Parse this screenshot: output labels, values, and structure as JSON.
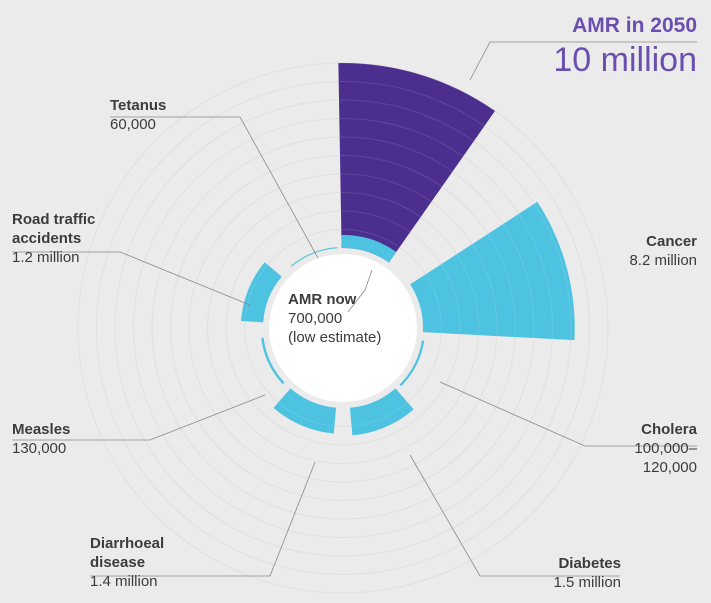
{
  "chart_data": {
    "type": "polar_bar",
    "categories": [
      "AMR in 2050",
      "Cancer",
      "Cholera",
      "Diabetes",
      "Diarrhoeal disease",
      "Measles",
      "Road traffic accidents",
      "Tetanus"
    ],
    "values": [
      10000000,
      8200000,
      120000,
      1500000,
      1400000,
      130000,
      1200000,
      60000
    ],
    "value_labels": [
      "10 million",
      "8.2 million",
      "100,000–120,000",
      "1.5 million",
      "1.4 million",
      "130,000",
      "1.2 million",
      "60,000"
    ],
    "colors": [
      "#4b2e8e",
      "#4dc3e1",
      "#4dc3e1",
      "#4dc3e1",
      "#4dc3e1",
      "#4dc3e1",
      "#4dc3e1",
      "#4dc3e1"
    ],
    "inner": {
      "label": "AMR now",
      "value": 700000,
      "value_label": "700,000",
      "note": "(low estimate)",
      "color": "#4dc3e1"
    }
  }
}
